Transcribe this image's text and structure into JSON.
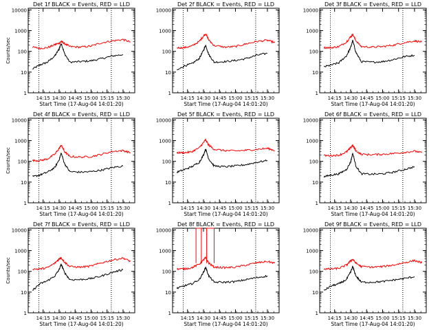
{
  "figure": {
    "colors": {
      "events": "#000000",
      "lld": "#ff0000",
      "axes": "#000000"
    }
  },
  "chart_data": [
    {
      "type": "line",
      "title": "Det 1f BLACK = Events, RED = LLD",
      "xlabel": "Start Time (17-Aug-04 14:01:20)",
      "ylabel": "Counts/sec",
      "y_scale": "log",
      "ylim": [
        1,
        12000
      ],
      "y_ticks": [
        1,
        10,
        100,
        1000,
        10000
      ],
      "y_tick_labels": [
        "1",
        "10",
        "100",
        "1000",
        "10000"
      ],
      "x": [
        "14:05",
        "14:12",
        "14:19",
        "14:26",
        "14:30",
        "14:32",
        "14:35",
        "14:40",
        "14:50",
        "15:00",
        "15:10",
        "15:20",
        "15:30",
        "15:37"
      ],
      "xlim": [
        "14:01",
        "15:41"
      ],
      "x_tick_labels": [
        "14:15",
        "14:30",
        "14:45",
        "15:00",
        "15:15",
        "15:30"
      ],
      "markers": [
        "14:11",
        "15:19"
      ],
      "series": [
        {
          "role": "events",
          "values": [
            14,
            22,
            30,
            60,
            130,
            250,
            80,
            30,
            32,
            35,
            45,
            60,
            70,
            null
          ]
        },
        {
          "role": "lld",
          "values": [
            160,
            140,
            150,
            210,
            250,
            300,
            240,
            170,
            160,
            180,
            260,
            320,
            370,
            280
          ]
        }
      ]
    },
    {
      "type": "line",
      "title": "Det 2f BLACK = Events, RED = LLD",
      "xlabel": "Start Time (17-Aug-04 14:01:20)",
      "ylabel": "",
      "y_scale": "log",
      "ylim": [
        1,
        12000
      ],
      "y_ticks": [
        1,
        10,
        100,
        1000,
        10000
      ],
      "y_tick_labels": [
        "1",
        "10",
        "100",
        "1000",
        "10000"
      ],
      "x": [
        "14:05",
        "14:12",
        "14:19",
        "14:26",
        "14:30",
        "14:32",
        "14:35",
        "14:40",
        "14:50",
        "15:00",
        "15:10",
        "15:20",
        "15:30",
        "15:37"
      ],
      "xlim": [
        "14:01",
        "15:41"
      ],
      "x_tick_labels": [
        "14:15",
        "14:30",
        "14:45",
        "15:00",
        "15:15",
        "15:30"
      ],
      "markers": [
        "14:11",
        "15:19"
      ],
      "series": [
        {
          "role": "events",
          "values": [
            12,
            20,
            25,
            45,
            110,
            200,
            70,
            30,
            32,
            36,
            45,
            65,
            80,
            null
          ]
        },
        {
          "role": "lld",
          "values": [
            150,
            150,
            180,
            300,
            550,
            700,
            350,
            190,
            160,
            170,
            230,
            300,
            340,
            260
          ]
        }
      ]
    },
    {
      "type": "line",
      "title": "Det 3f BLACK = Events, RED = LLD",
      "xlabel": "Start Time (17-Aug-04 14:01:20)",
      "ylabel": "",
      "y_scale": "log",
      "ylim": [
        1,
        12000
      ],
      "y_ticks": [
        1,
        10,
        100,
        1000,
        10000
      ],
      "y_tick_labels": [
        "1",
        "10",
        "100",
        "1000",
        "10000"
      ],
      "x": [
        "14:05",
        "14:12",
        "14:19",
        "14:26",
        "14:30",
        "14:32",
        "14:35",
        "14:40",
        "14:50",
        "15:00",
        "15:10",
        "15:20",
        "15:30",
        "15:37"
      ],
      "xlim": [
        "14:01",
        "15:41"
      ],
      "x_tick_labels": [
        "14:15",
        "14:30",
        "14:45",
        "15:00",
        "15:15",
        "15:30"
      ],
      "markers": [
        "14:11",
        "15:19"
      ],
      "series": [
        {
          "role": "events",
          "values": [
            18,
            22,
            28,
            60,
            150,
            330,
            90,
            32,
            30,
            32,
            40,
            55,
            65,
            null
          ]
        },
        {
          "role": "lld",
          "values": [
            150,
            150,
            170,
            280,
            500,
            650,
            330,
            170,
            160,
            170,
            200,
            260,
            320,
            280
          ]
        }
      ]
    },
    {
      "type": "line",
      "title": "Det 4f BLACK = Events, RED = LLD",
      "xlabel": "Start Time (17-Aug-04 14:01:20)",
      "ylabel": "Counts/sec",
      "y_scale": "log",
      "ylim": [
        1,
        12000
      ],
      "y_ticks": [
        1,
        10,
        100,
        1000,
        10000
      ],
      "y_tick_labels": [
        "1",
        "10",
        "100",
        "1000",
        "10000"
      ],
      "x": [
        "14:05",
        "14:12",
        "14:19",
        "14:26",
        "14:30",
        "14:32",
        "14:35",
        "14:40",
        "14:50",
        "15:00",
        "15:10",
        "15:20",
        "15:30",
        "15:37"
      ],
      "xlim": [
        "14:01",
        "15:41"
      ],
      "x_tick_labels": [
        "14:15",
        "14:30",
        "14:45",
        "15:00",
        "15:15",
        "15:30"
      ],
      "markers": [
        "14:11",
        "15:19"
      ],
      "series": [
        {
          "role": "events",
          "values": [
            18,
            22,
            30,
            50,
            120,
            250,
            80,
            32,
            30,
            32,
            38,
            50,
            60,
            null
          ]
        },
        {
          "role": "lld",
          "values": [
            110,
            110,
            130,
            220,
            420,
            600,
            300,
            170,
            160,
            170,
            220,
            300,
            330,
            260
          ]
        }
      ]
    },
    {
      "type": "line",
      "title": "Det 5f BLACK = Events, RED = LLD",
      "xlabel": "Start Time (17-Aug-04 14:01:20)",
      "ylabel": "",
      "y_scale": "log",
      "ylim": [
        1,
        12000
      ],
      "y_ticks": [
        1,
        10,
        100,
        1000,
        10000
      ],
      "y_tick_labels": [
        "1",
        "10",
        "100",
        "1000",
        "10000"
      ],
      "x": [
        "14:05",
        "14:12",
        "14:19",
        "14:26",
        "14:30",
        "14:32",
        "14:35",
        "14:40",
        "14:50",
        "15:00",
        "15:10",
        "15:20",
        "15:30",
        "15:37"
      ],
      "xlim": [
        "14:01",
        "15:41"
      ],
      "x_tick_labels": [
        "14:15",
        "14:30",
        "14:45",
        "15:00",
        "15:15",
        "15:30"
      ],
      "markers": [
        "14:11",
        "15:19"
      ],
      "series": [
        {
          "role": "events",
          "values": [
            30,
            40,
            55,
            90,
            200,
            400,
            130,
            60,
            55,
            60,
            70,
            90,
            110,
            null
          ]
        },
        {
          "role": "lld",
          "values": [
            260,
            260,
            290,
            450,
            800,
            1100,
            600,
            380,
            330,
            320,
            340,
            380,
            420,
            330
          ]
        }
      ]
    },
    {
      "type": "line",
      "title": "Det 6f BLACK = Events, RED = LLD",
      "xlabel": "Start Time (17-Aug-04 14:01:20)",
      "ylabel": "",
      "y_scale": "log",
      "ylim": [
        1,
        12000
      ],
      "y_ticks": [
        1,
        10,
        100,
        1000,
        10000
      ],
      "y_tick_labels": [
        "1",
        "10",
        "100",
        "1000",
        "10000"
      ],
      "x": [
        "14:05",
        "14:12",
        "14:19",
        "14:26",
        "14:30",
        "14:32",
        "14:35",
        "14:40",
        "14:50",
        "15:00",
        "15:10",
        "15:20",
        "15:30",
        "15:37"
      ],
      "xlim": [
        "14:01",
        "15:41"
      ],
      "x_tick_labels": [
        "14:15",
        "14:30",
        "14:45",
        "15:00",
        "15:15",
        "15:30"
      ],
      "markers": [
        "14:11",
        "15:19"
      ],
      "series": [
        {
          "role": "events",
          "values": [
            18,
            22,
            25,
            40,
            90,
            250,
            60,
            25,
            24,
            25,
            30,
            40,
            55,
            null
          ]
        },
        {
          "role": "lld",
          "values": [
            190,
            190,
            200,
            280,
            450,
            600,
            320,
            220,
            210,
            220,
            240,
            270,
            310,
            260
          ]
        }
      ]
    },
    {
      "type": "line",
      "title": "Det 7f BLACK = Events, RED = LLD",
      "xlabel": "Start Time (17-Aug-04 14:01:20)",
      "ylabel": "Counts/sec",
      "y_scale": "log",
      "ylim": [
        1,
        12000
      ],
      "y_ticks": [
        1,
        10,
        100,
        1000,
        10000
      ],
      "y_tick_labels": [
        "1",
        "10",
        "100",
        "1000",
        "10000"
      ],
      "x": [
        "14:05",
        "14:12",
        "14:19",
        "14:26",
        "14:30",
        "14:32",
        "14:35",
        "14:40",
        "14:50",
        "15:00",
        "15:10",
        "15:20",
        "15:30",
        "15:37"
      ],
      "xlim": [
        "14:01",
        "15:41"
      ],
      "x_tick_labels": [
        "14:15",
        "14:30",
        "14:45",
        "15:00",
        "15:15",
        "15:30"
      ],
      "markers": [
        "14:11",
        "15:19"
      ],
      "series": [
        {
          "role": "events",
          "values": [
            12,
            25,
            35,
            60,
            120,
            220,
            90,
            40,
            40,
            45,
            60,
            90,
            120,
            null
          ]
        },
        {
          "role": "lld",
          "values": [
            130,
            130,
            150,
            250,
            400,
            450,
            280,
            170,
            160,
            180,
            260,
            350,
            440,
            300
          ]
        }
      ]
    },
    {
      "type": "line",
      "title": "Det 8f BLACK = Events, RED = LLD",
      "xlabel": "Start Time (17-Aug-04 14:01:20)",
      "ylabel": "",
      "y_scale": "log",
      "ylim": [
        1,
        12000
      ],
      "y_ticks": [
        1,
        10,
        100,
        1000,
        10000
      ],
      "y_tick_labels": [
        "1",
        "10",
        "100",
        "1000",
        "10000"
      ],
      "x": [
        "14:05",
        "14:12",
        "14:19",
        "14:26",
        "14:30",
        "14:32",
        "14:35",
        "14:40",
        "14:50",
        "15:00",
        "15:10",
        "15:20",
        "15:30",
        "15:37"
      ],
      "xlim": [
        "14:01",
        "15:41"
      ],
      "x_tick_labels": [
        "14:15",
        "14:30",
        "14:45",
        "15:00",
        "15:15",
        "15:30"
      ],
      "markers": [
        "14:11",
        "15:19"
      ],
      "series": [
        {
          "role": "events",
          "values": [
            15,
            20,
            25,
            40,
            90,
            160,
            60,
            30,
            30,
            32,
            40,
            50,
            60,
            null
          ]
        },
        {
          "role": "lld",
          "values": [
            130,
            130,
            150,
            220,
            350,
            450,
            250,
            160,
            150,
            160,
            200,
            260,
            300,
            250
          ]
        }
      ],
      "annotations": [
        {
          "label": "LLD spikes above plot",
          "x": [
            "14:23",
            "14:28",
            "14:33",
            "14:40"
          ],
          "ylim_exceeded": true
        }
      ]
    },
    {
      "type": "line",
      "title": "Det 9f BLACK = Events, RED = LLD",
      "xlabel": "Start Time (17-Aug-04 14:01:20)",
      "ylabel": "",
      "y_scale": "log",
      "ylim": [
        1,
        12000
      ],
      "y_ticks": [
        1,
        10,
        100,
        1000,
        10000
      ],
      "y_tick_labels": [
        "1",
        "10",
        "100",
        "1000",
        "10000"
      ],
      "x": [
        "14:05",
        "14:12",
        "14:19",
        "14:26",
        "14:30",
        "14:32",
        "14:35",
        "14:40",
        "14:50",
        "15:00",
        "15:10",
        "15:20",
        "15:30",
        "15:37"
      ],
      "xlim": [
        "14:01",
        "15:41"
      ],
      "x_tick_labels": [
        "14:15",
        "14:30",
        "14:45",
        "15:00",
        "15:15",
        "15:30"
      ],
      "markers": [
        "14:11",
        "15:19"
      ],
      "series": [
        {
          "role": "events",
          "values": [
            12,
            20,
            25,
            40,
            90,
            170,
            60,
            30,
            30,
            32,
            38,
            45,
            55,
            null
          ]
        },
        {
          "role": "lld",
          "values": [
            130,
            130,
            140,
            200,
            320,
            380,
            250,
            170,
            160,
            170,
            200,
            260,
            330,
            260
          ]
        }
      ]
    }
  ]
}
